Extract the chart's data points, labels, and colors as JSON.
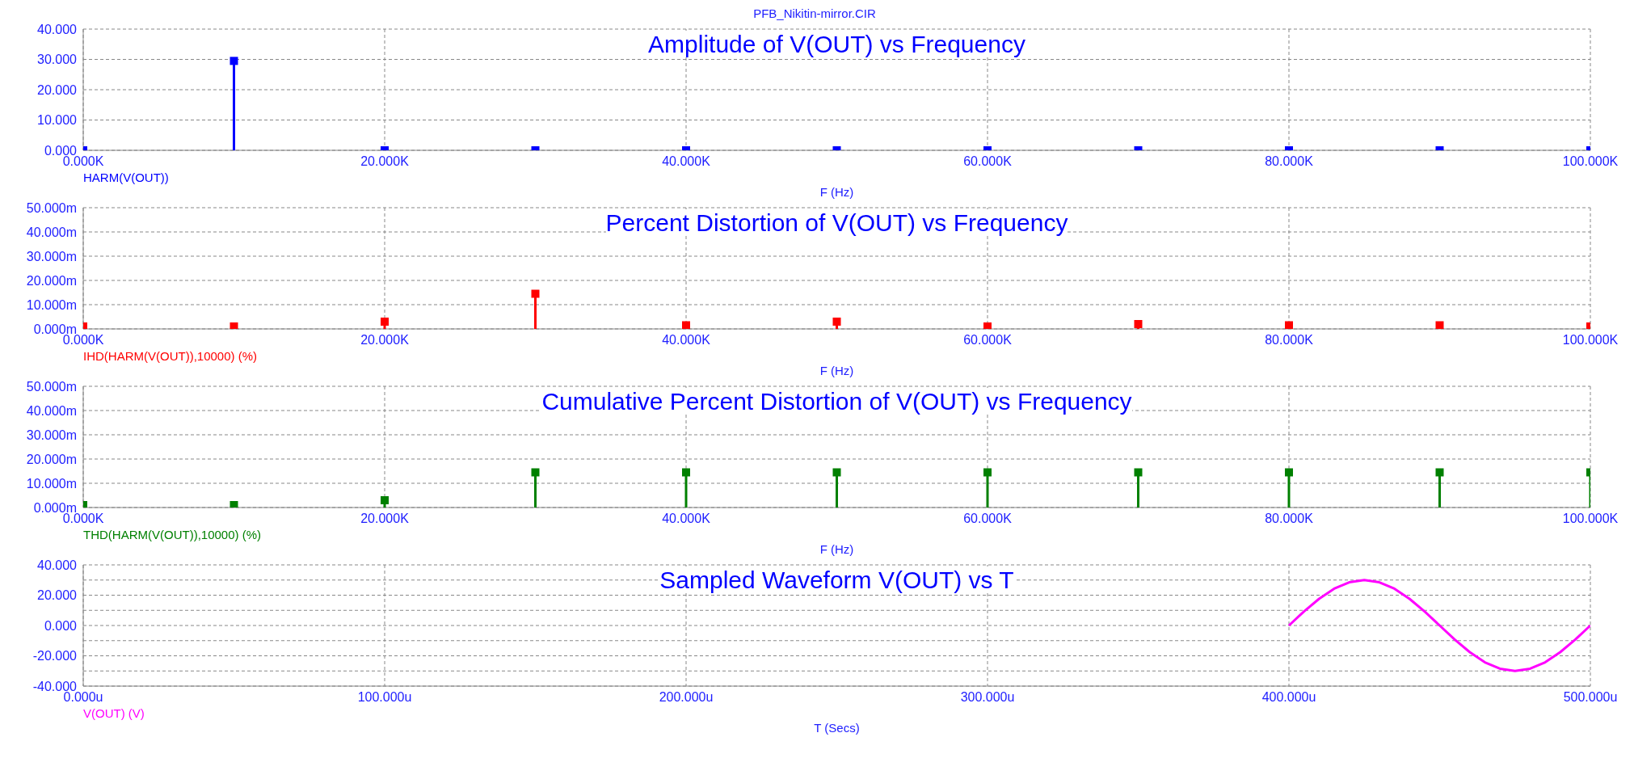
{
  "chart_data": [
    {
      "type": "lollipop",
      "title": "Amplitude of V(OUT) vs Frequency",
      "xlabel": "F (Hz)",
      "annotations": [
        "PFB_Nikitin-mirror.CIR"
      ],
      "x": [
        0,
        10000,
        20000,
        30000,
        40000,
        50000,
        60000,
        70000,
        80000,
        90000,
        100000
      ],
      "series": [
        {
          "name": "HARM(V(OUT))",
          "color": "#0000ff",
          "values": [
            0,
            29.5,
            0,
            0,
            0,
            0,
            0,
            0,
            0,
            0,
            0
          ]
        }
      ],
      "xlim": [
        0,
        100000
      ],
      "xticks": [
        {
          "value": 0,
          "label": "0.000K"
        },
        {
          "value": 20000,
          "label": "20.000K"
        },
        {
          "value": 40000,
          "label": "40.000K"
        },
        {
          "value": 60000,
          "label": "60.000K"
        },
        {
          "value": 80000,
          "label": "80.000K"
        },
        {
          "value": 100000,
          "label": "100.000K"
        }
      ],
      "ylim": [
        0,
        40
      ],
      "yticks": [
        {
          "value": 0,
          "label": "0.000"
        },
        {
          "value": 10,
          "label": "10.000"
        },
        {
          "value": 20,
          "label": "20.000"
        },
        {
          "value": 30,
          "label": "30.000"
        },
        {
          "value": 40,
          "label": "40.000"
        }
      ],
      "grid": true,
      "marker": "square"
    },
    {
      "type": "lollipop",
      "title": "Percent Distortion of V(OUT) vs Frequency",
      "xlabel": "F (Hz)",
      "x": [
        0,
        10000,
        20000,
        30000,
        40000,
        50000,
        60000,
        70000,
        80000,
        90000,
        100000
      ],
      "series": [
        {
          "name": "IHD(HARM(V(OUT)),10000) (%)",
          "color": "#ff0000",
          "values": [
            1,
            1,
            3,
            14.5,
            1.5,
            3,
            1,
            2,
            1.5,
            1.5,
            1
          ]
        }
      ],
      "xlim": [
        0,
        100000
      ],
      "xticks": [
        {
          "value": 0,
          "label": "0.000K"
        },
        {
          "value": 20000,
          "label": "20.000K"
        },
        {
          "value": 40000,
          "label": "40.000K"
        },
        {
          "value": 60000,
          "label": "60.000K"
        },
        {
          "value": 80000,
          "label": "80.000K"
        },
        {
          "value": 100000,
          "label": "100.000K"
        }
      ],
      "ylim": [
        0,
        50
      ],
      "yticks": [
        {
          "value": 0,
          "label": "0.000m"
        },
        {
          "value": 10,
          "label": "10.000m"
        },
        {
          "value": 20,
          "label": "20.000m"
        },
        {
          "value": 30,
          "label": "30.000m"
        },
        {
          "value": 40,
          "label": "40.000m"
        },
        {
          "value": 50,
          "label": "50.000m"
        }
      ],
      "grid": true,
      "marker": "square"
    },
    {
      "type": "lollipop",
      "title": "Cumulative Percent Distortion of V(OUT) vs Frequency",
      "xlabel": "F (Hz)",
      "x": [
        0,
        10000,
        20000,
        30000,
        40000,
        50000,
        60000,
        70000,
        80000,
        90000,
        100000
      ],
      "series": [
        {
          "name": "THD(HARM(V(OUT)),10000) (%)",
          "color": "#008000",
          "values": [
            1,
            1,
            3,
            14.5,
            14.5,
            14.5,
            14.5,
            14.5,
            14.5,
            14.5,
            14.5
          ]
        }
      ],
      "xlim": [
        0,
        100000
      ],
      "xticks": [
        {
          "value": 0,
          "label": "0.000K"
        },
        {
          "value": 20000,
          "label": "20.000K"
        },
        {
          "value": 40000,
          "label": "40.000K"
        },
        {
          "value": 60000,
          "label": "60.000K"
        },
        {
          "value": 80000,
          "label": "80.000K"
        },
        {
          "value": 100000,
          "label": "100.000K"
        }
      ],
      "ylim": [
        0,
        50
      ],
      "yticks": [
        {
          "value": 0,
          "label": "0.000m"
        },
        {
          "value": 10,
          "label": "10.000m"
        },
        {
          "value": 20,
          "label": "20.000m"
        },
        {
          "value": 30,
          "label": "30.000m"
        },
        {
          "value": 40,
          "label": "40.000m"
        },
        {
          "value": 50,
          "label": "50.000m"
        }
      ],
      "grid": true,
      "marker": "square"
    },
    {
      "type": "line",
      "title": "Sampled Waveform  V(OUT) vs T",
      "xlabel": "T (Secs)",
      "x": [
        400,
        405,
        410,
        415,
        420,
        425,
        430,
        435,
        440,
        445,
        450,
        455,
        460,
        465,
        470,
        475,
        480,
        485,
        490,
        495,
        500
      ],
      "series": [
        {
          "name": "V(OUT) (V)",
          "color": "#ff00ff",
          "values": [
            0,
            9.3,
            17.6,
            24.3,
            28.5,
            30,
            28.5,
            24.3,
            17.6,
            9.3,
            0,
            -9.3,
            -17.6,
            -24.3,
            -28.5,
            -30,
            -28.5,
            -24.3,
            -17.6,
            -9.3,
            0
          ]
        }
      ],
      "xlim": [
        0,
        500
      ],
      "xticks": [
        {
          "value": 0,
          "label": "0.000u"
        },
        {
          "value": 100,
          "label": "100.000u"
        },
        {
          "value": 200,
          "label": "200.000u"
        },
        {
          "value": 300,
          "label": "300.000u"
        },
        {
          "value": 400,
          "label": "400.000u"
        },
        {
          "value": 500,
          "label": "500.000u"
        }
      ],
      "ylim": [
        -40,
        40
      ],
      "yticks": [
        {
          "value": -40,
          "label": "-40.000"
        },
        {
          "value": -30,
          "label": null
        },
        {
          "value": -20,
          "label": "-20.000"
        },
        {
          "value": -10,
          "label": null
        },
        {
          "value": 0,
          "label": "0.000"
        },
        {
          "value": 10,
          "label": null
        },
        {
          "value": 20,
          "label": "20.000"
        },
        {
          "value": 30,
          "label": null
        },
        {
          "value": 40,
          "label": "40.000"
        }
      ],
      "grid": true,
      "marker": "none",
      "line_style": "solid"
    }
  ]
}
